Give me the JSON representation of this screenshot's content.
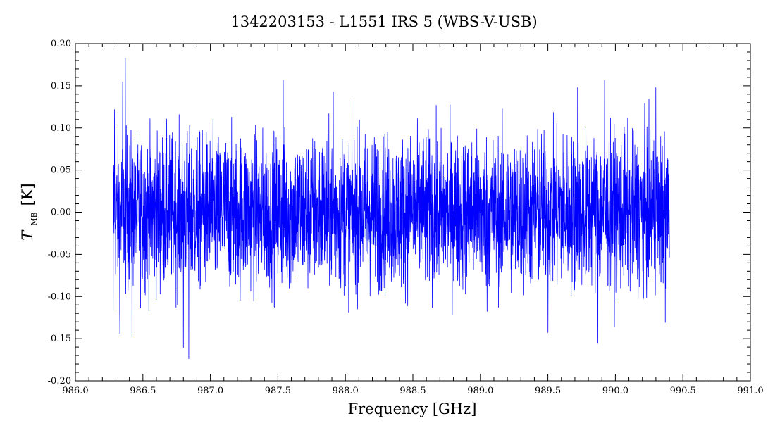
{
  "chart_data": {
    "type": "line",
    "title": "1342203153 - L1551 IRS 5 (WBS-V-USB)",
    "xlabel": "Frequency [GHz]",
    "ylabel": {
      "symbol": "T",
      "subscript": "MB",
      "unit": "[K]"
    },
    "xlim": [
      986.0,
      991.0
    ],
    "ylim": [
      -0.2,
      0.2
    ],
    "x_ticks": [
      "986.0",
      "986.5",
      "987.0",
      "987.5",
      "988.0",
      "988.5",
      "989.0",
      "989.5",
      "990.0",
      "990.5",
      "991.0"
    ],
    "y_ticks": [
      "-0.20",
      "-0.15",
      "-0.10",
      "-0.05",
      "0.00",
      "0.05",
      "0.10",
      "0.15",
      "0.20"
    ],
    "grid": false,
    "series": [
      {
        "color": "#0000ff",
        "x_range": [
          986.28,
          990.4
        ],
        "baseline": 0.0,
        "noise_rms": 0.045,
        "max": 0.183,
        "min": -0.174,
        "peaks": [
          {
            "x": 986.37,
            "y": 0.183
          },
          {
            "x": 986.35,
            "y": 0.155
          },
          {
            "x": 987.54,
            "y": 0.157
          },
          {
            "x": 987.91,
            "y": 0.143
          },
          {
            "x": 989.72,
            "y": 0.148
          },
          {
            "x": 989.92,
            "y": 0.157
          },
          {
            "x": 990.3,
            "y": 0.148
          },
          {
            "x": 986.29,
            "y": 0.122
          }
        ],
        "troughs": [
          {
            "x": 986.84,
            "y": -0.174
          },
          {
            "x": 986.8,
            "y": -0.161
          },
          {
            "x": 989.87,
            "y": -0.156
          },
          {
            "x": 986.33,
            "y": -0.144
          },
          {
            "x": 986.42,
            "y": -0.148
          },
          {
            "x": 989.5,
            "y": -0.143
          },
          {
            "x": 986.28,
            "y": -0.117
          },
          {
            "x": 989.05,
            "y": -0.118
          },
          {
            "x": 990.37,
            "y": -0.131
          }
        ]
      }
    ]
  }
}
